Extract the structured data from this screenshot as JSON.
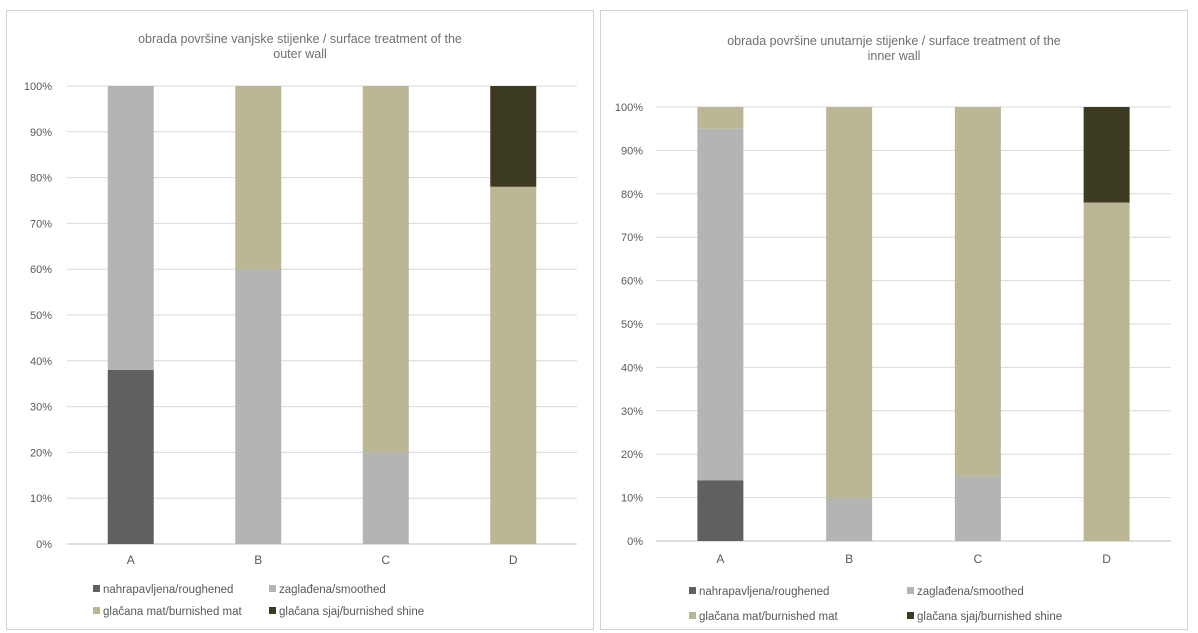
{
  "colors": {
    "roughened": "#5f6062",
    "smoothed": "#b3b5b5",
    "burnished_mat": "#bbb694",
    "burnished_shine": "#3d3a22",
    "grid": "#d9d9d9",
    "axis_text": "#595959"
  },
  "chart_data": [
    {
      "type": "bar",
      "stacked": true,
      "title": "obrada površine vanjske stijenke / surface treatment of the\nouter wall",
      "categories": [
        "A",
        "B",
        "C",
        "D"
      ],
      "ylim": [
        0,
        100
      ],
      "y_ticks": [
        "0%",
        "10%",
        "20%",
        "30%",
        "40%",
        "50%",
        "60%",
        "70%",
        "80%",
        "90%",
        "100%"
      ],
      "grid": true,
      "legend_position": "bottom",
      "series": [
        {
          "name": "nahrapavljena/roughened",
          "values": [
            38,
            0,
            0,
            0
          ]
        },
        {
          "name": "zaglađena/smoothed",
          "values": [
            62,
            60,
            20,
            0
          ]
        },
        {
          "name": "glačana mat/burnished mat",
          "values": [
            0,
            40,
            80,
            78
          ]
        },
        {
          "name": "glačana sjaj/burnished shine",
          "values": [
            0,
            0,
            0,
            22
          ]
        }
      ]
    },
    {
      "type": "bar",
      "stacked": true,
      "title": "obrada površine unutarnje stijenke / surface treatment of the\ninner wall",
      "categories": [
        "A",
        "B",
        "C",
        "D"
      ],
      "ylim": [
        0,
        100
      ],
      "y_ticks": [
        "0%",
        "10%",
        "20%",
        "30%",
        "40%",
        "50%",
        "60%",
        "70%",
        "80%",
        "90%",
        "100%"
      ],
      "grid": true,
      "legend_position": "bottom",
      "series": [
        {
          "name": "nahrapavljena/roughened",
          "values": [
            14,
            0,
            0,
            0
          ]
        },
        {
          "name": "zaglađena/smoothed",
          "values": [
            81,
            10,
            15,
            0
          ]
        },
        {
          "name": "glačana mat/burnished mat",
          "values": [
            5,
            90,
            85,
            78
          ]
        },
        {
          "name": "glačana sjaj/burnished shine",
          "values": [
            0,
            0,
            0,
            22
          ]
        }
      ]
    }
  ]
}
